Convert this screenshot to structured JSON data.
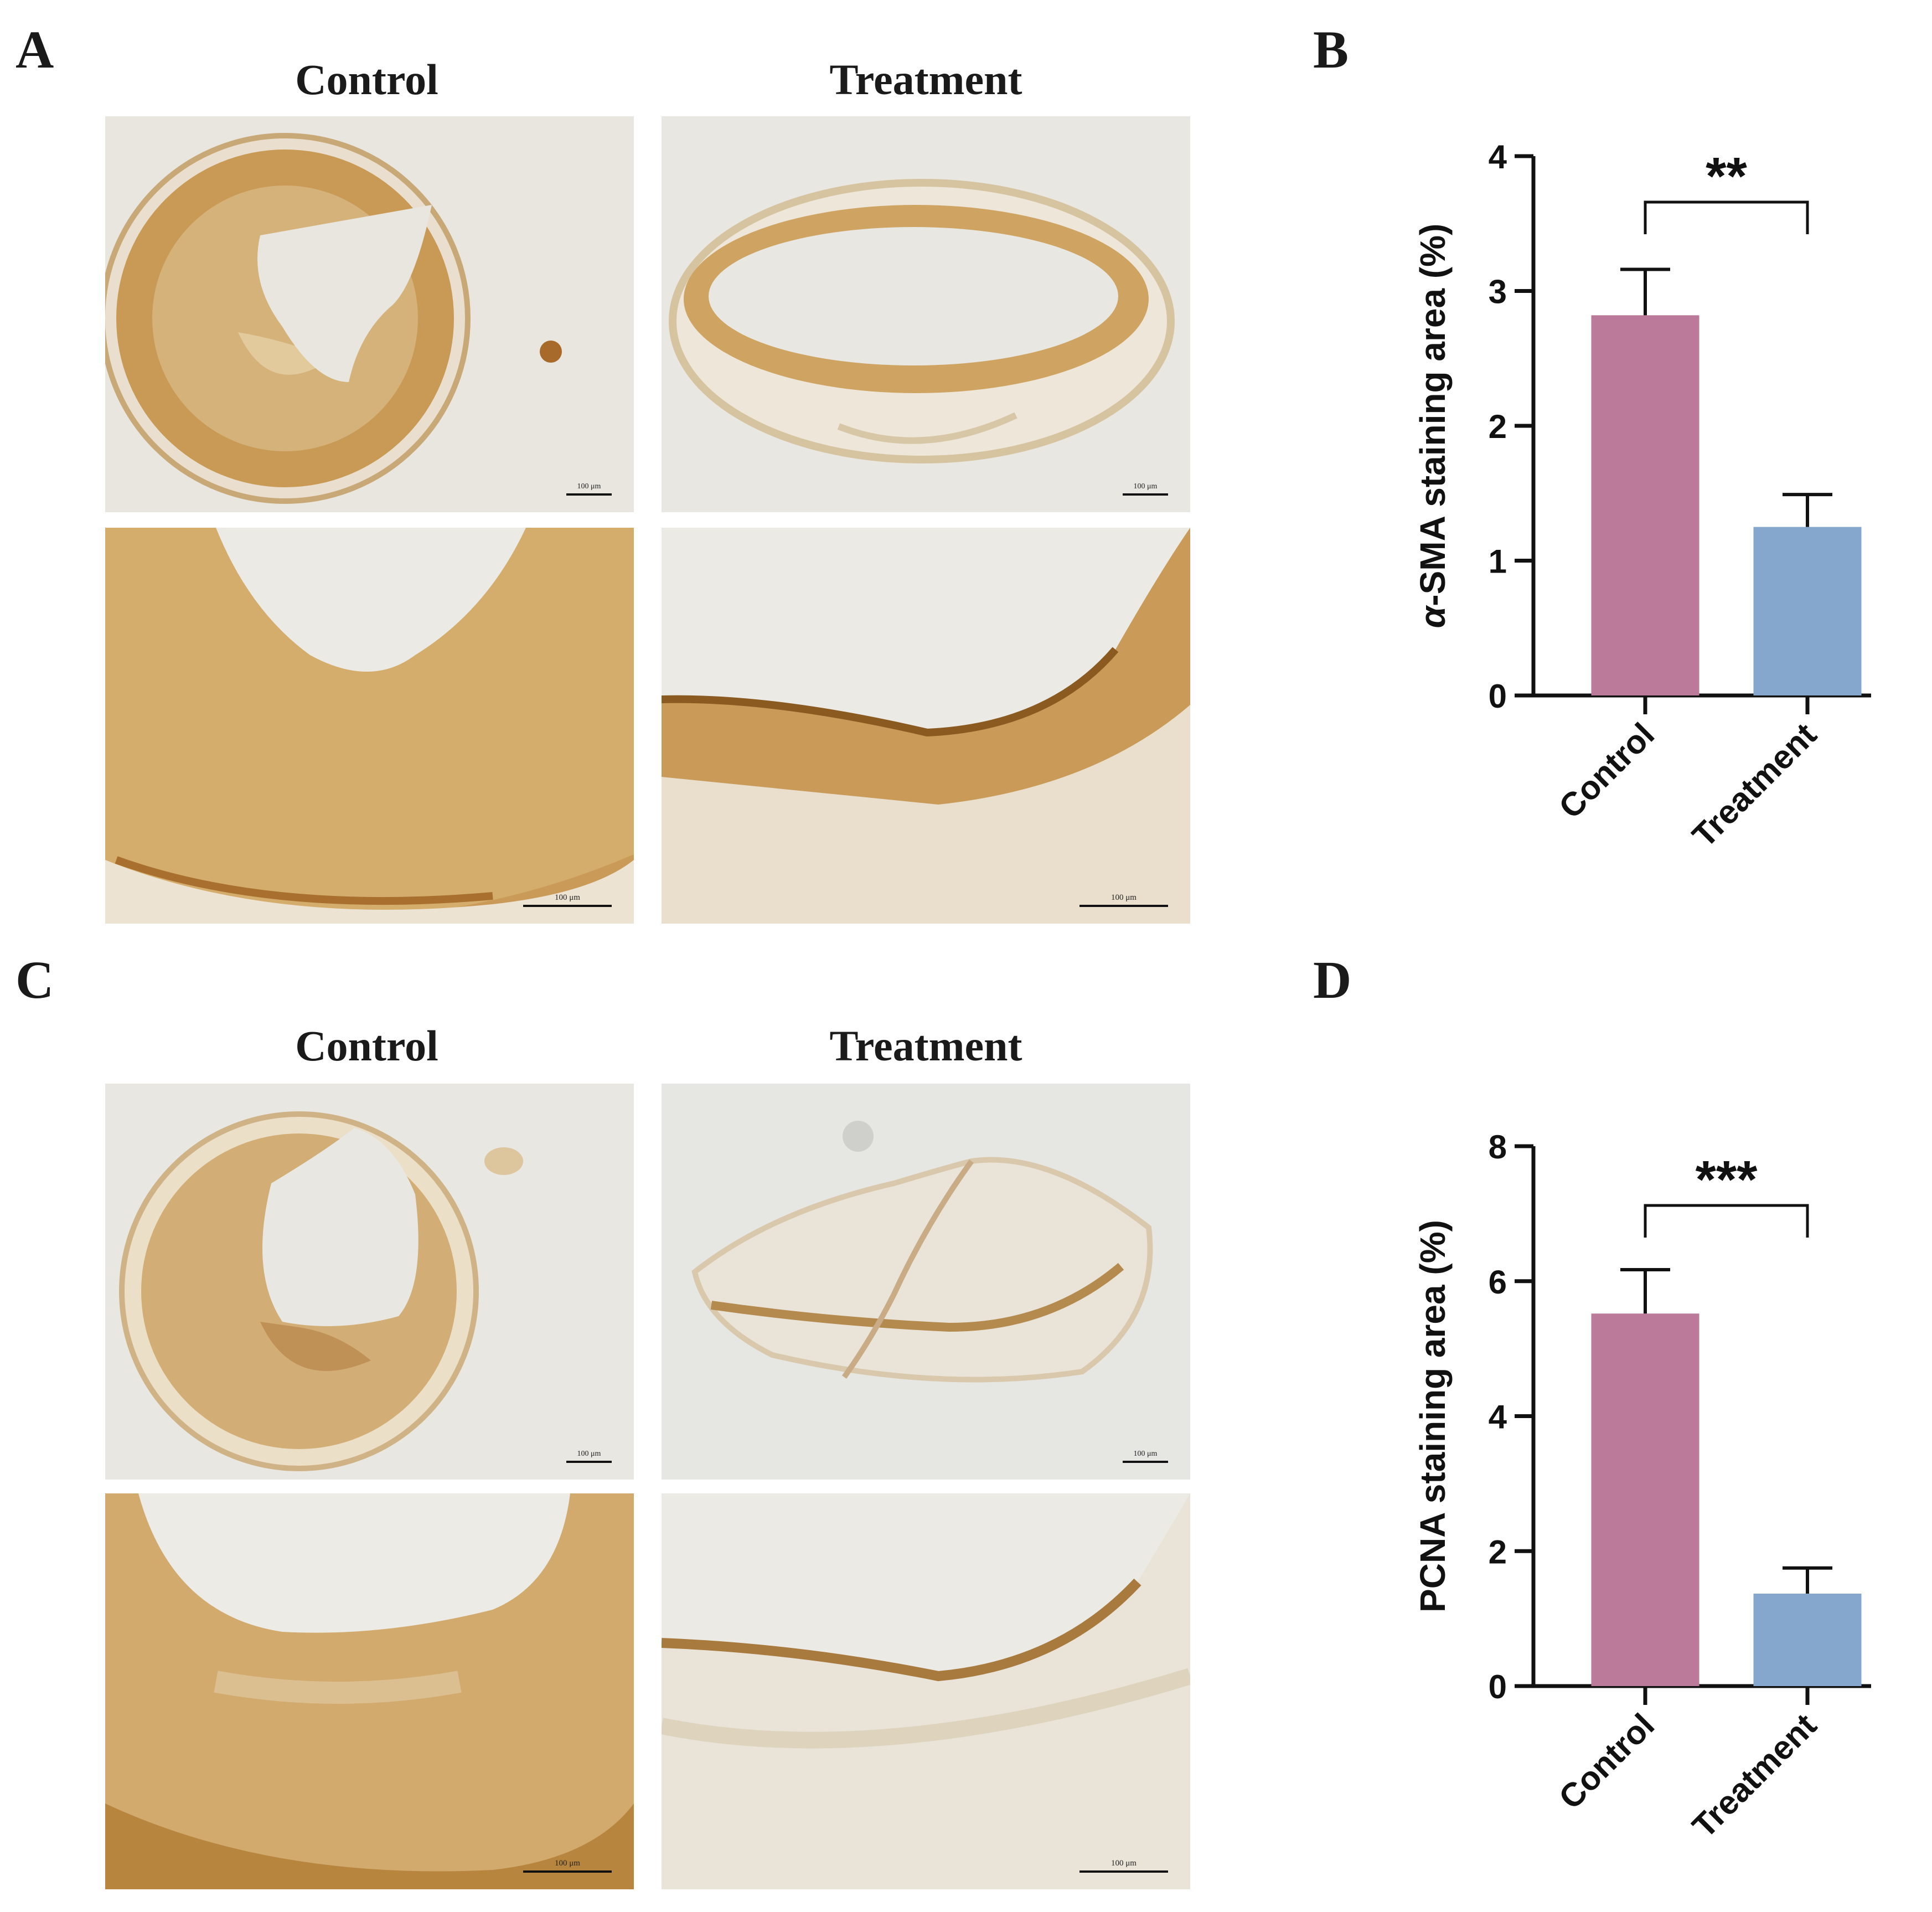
{
  "panels": {
    "A": {
      "label": "A",
      "col_titles": [
        "Control",
        "Treatment"
      ],
      "scale_bar_text": "100 μm"
    },
    "B": {
      "label": "B"
    },
    "C": {
      "label": "C",
      "col_titles": [
        "Control",
        "Treatment"
      ],
      "scale_bar_text": "100 μm"
    },
    "D": {
      "label": "D"
    }
  },
  "colors": {
    "control_bar": "#bb7a9a",
    "treatment_bar": "#85a6cd",
    "axis": "#111111"
  },
  "chart_data": [
    {
      "panel": "B",
      "type": "bar",
      "categories": [
        "Control",
        "Treatment"
      ],
      "values": [
        2.82,
        1.25
      ],
      "errors": [
        0.34,
        0.24
      ],
      "ylabel": "α-SMA staining area (%)",
      "ylabel_italic_prefix": "α",
      "ylabel_rest": "-SMA staining area (%)",
      "ylim": [
        0,
        4
      ],
      "yticks": [
        0,
        1,
        2,
        3,
        4
      ],
      "significance": "**",
      "colors": [
        "#bb7a9a",
        "#85a6cd"
      ]
    },
    {
      "panel": "D",
      "type": "bar",
      "categories": [
        "Control",
        "Treatment"
      ],
      "values": [
        5.52,
        1.37
      ],
      "errors": [
        0.65,
        0.38
      ],
      "ylabel": "PCNA staining area (%)",
      "ylim": [
        0,
        8
      ],
      "yticks": [
        0,
        2,
        4,
        6,
        8
      ],
      "significance": "***",
      "colors": [
        "#bb7a9a",
        "#85a6cd"
      ]
    }
  ]
}
